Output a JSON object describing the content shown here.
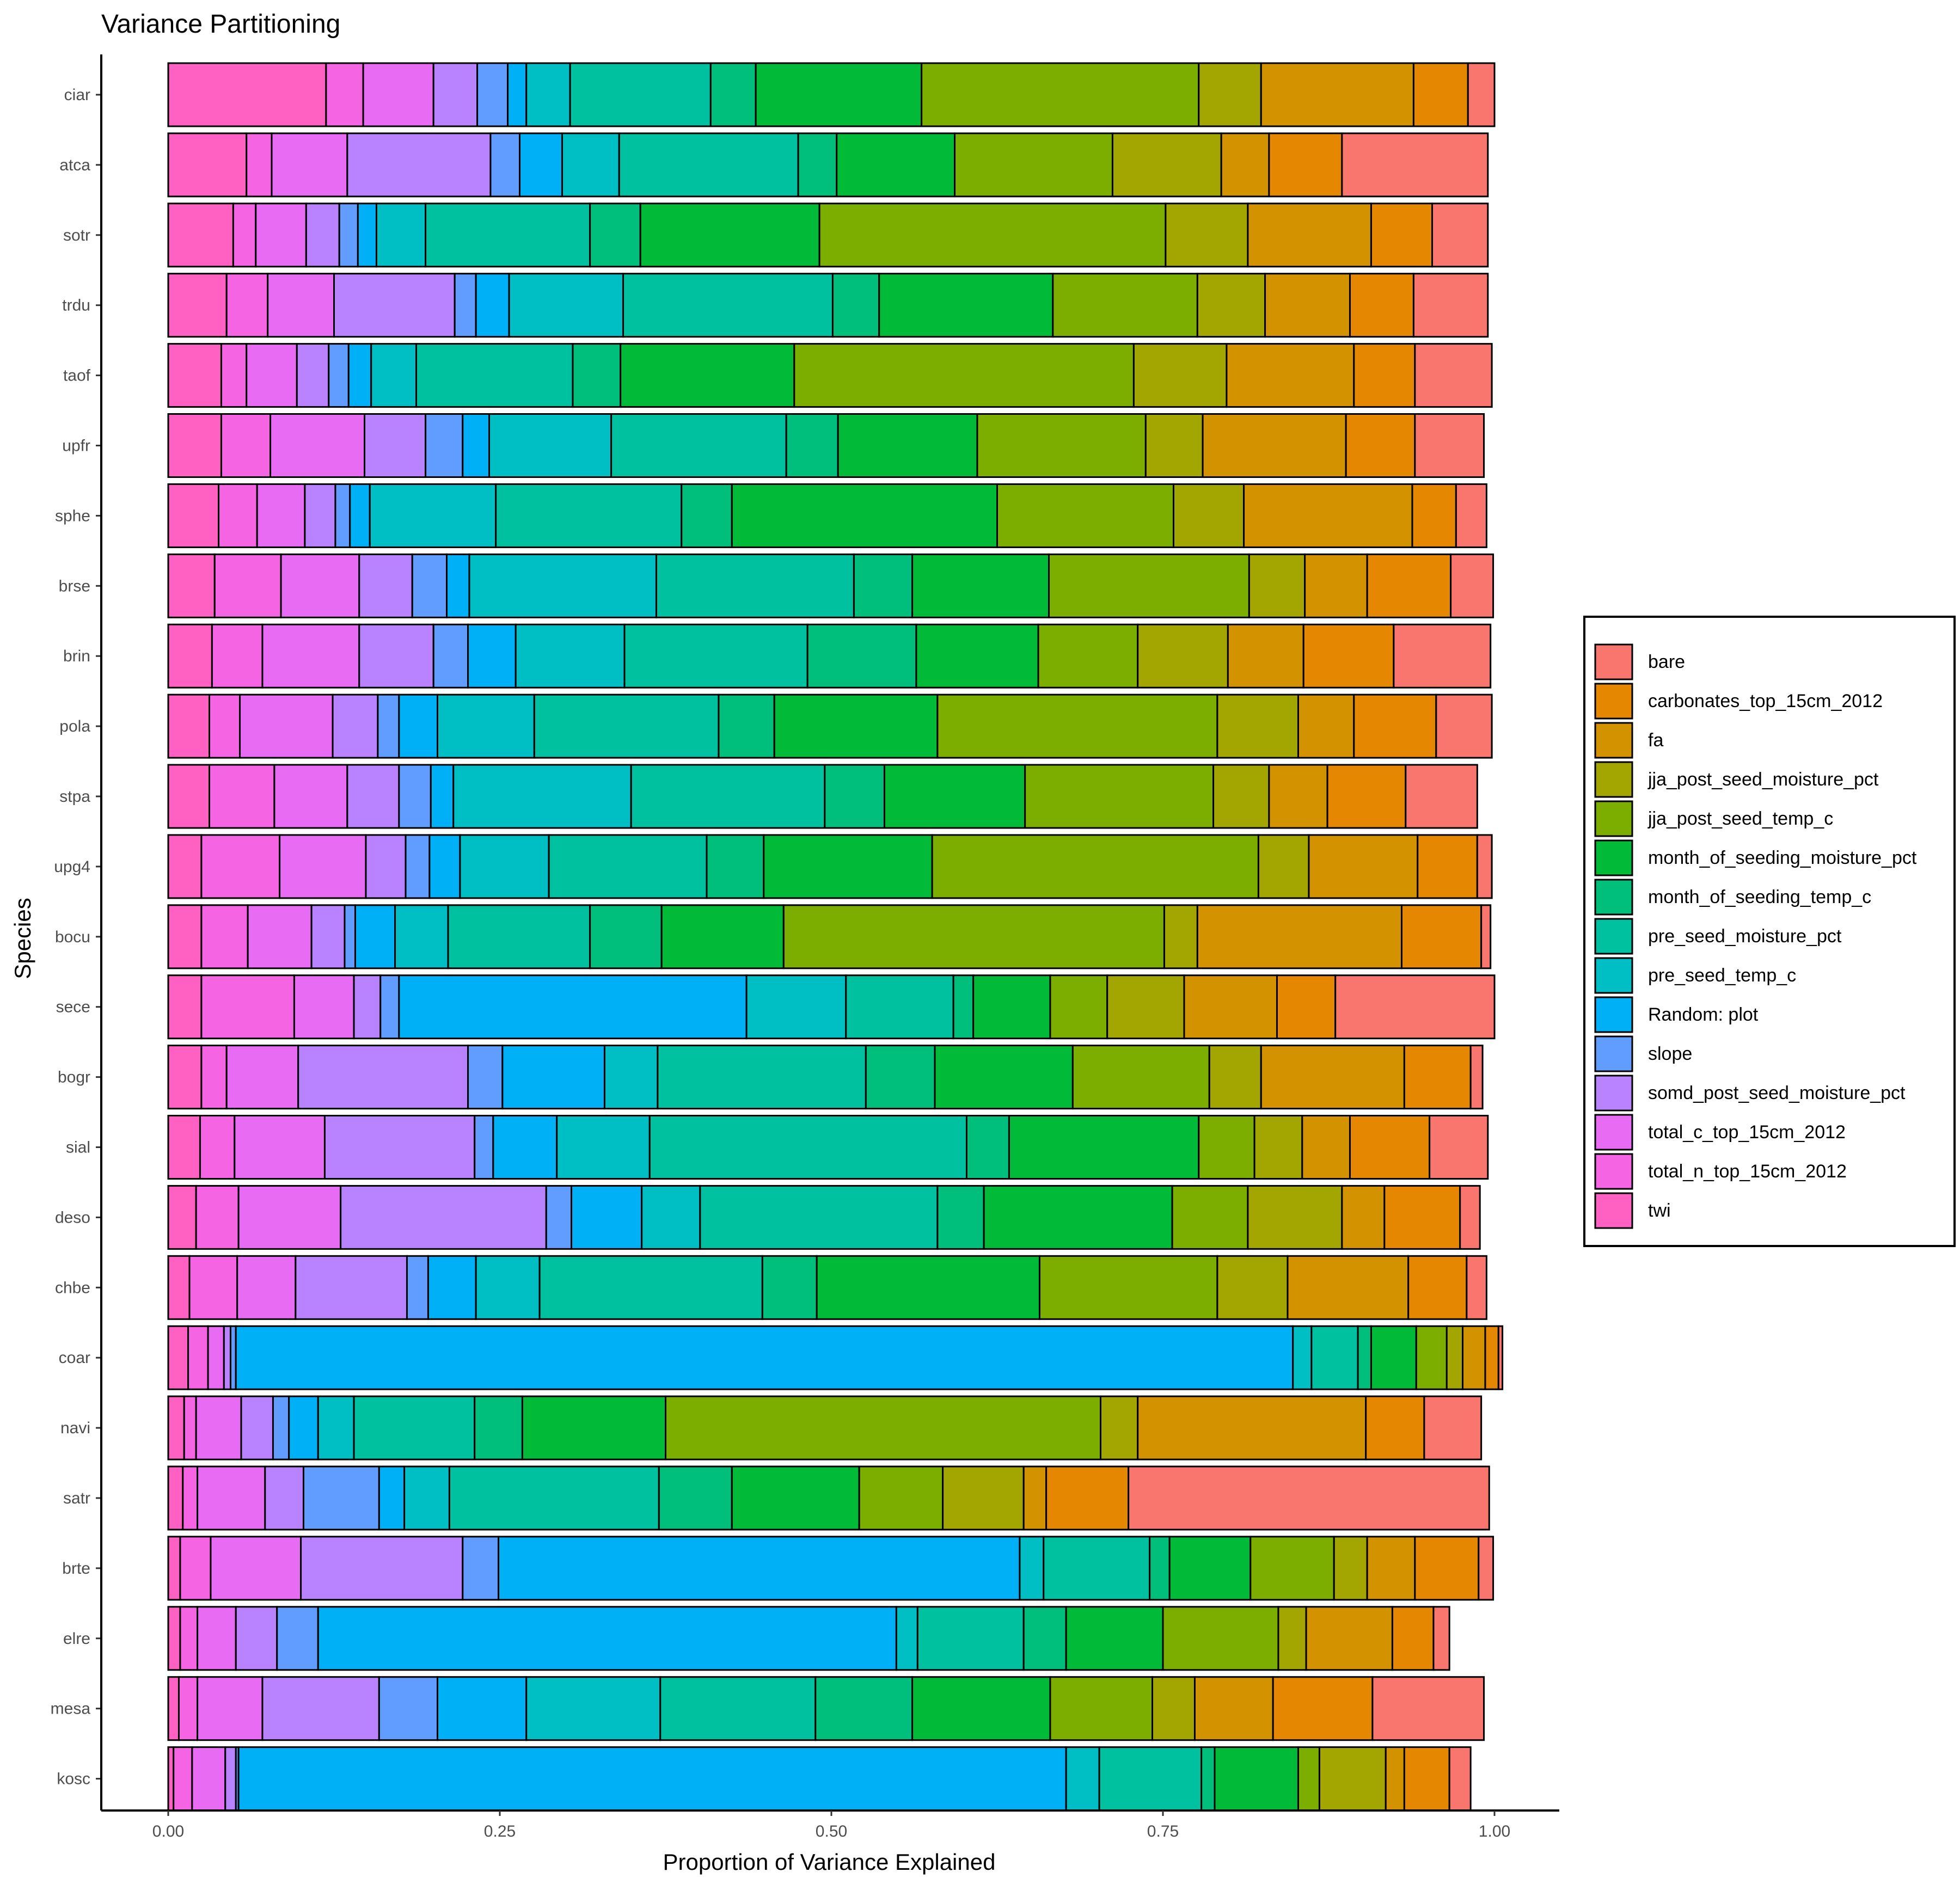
{
  "chart_data": {
    "type": "bar",
    "orientation": "horizontal",
    "stacked": true,
    "title": "Variance Partitioning",
    "xlabel": "Proportion of Variance Explained",
    "ylabel": "Species",
    "xlim": [
      0,
      1
    ],
    "xticks": [
      "0.00",
      "0.25",
      "0.50",
      "0.75",
      "1.00"
    ],
    "grid": false,
    "legend_position": "right",
    "categories": [
      "ciar",
      "atca",
      "sotr",
      "trdu",
      "taof",
      "upfr",
      "sphe",
      "brse",
      "brin",
      "pola",
      "stpa",
      "upg4",
      "bocu",
      "sece",
      "bogr",
      "sial",
      "deso",
      "chbe",
      "coar",
      "navi",
      "satr",
      "brte",
      "elre",
      "mesa",
      "kosc"
    ],
    "series": [
      {
        "name": "twi",
        "color": "#FF61C3",
        "values": [
          0.119,
          0.059,
          0.049,
          0.044,
          0.04,
          0.04,
          0.038,
          0.035,
          0.033,
          0.031,
          0.031,
          0.025,
          0.025,
          0.025,
          0.025,
          0.024,
          0.021,
          0.016,
          0.015,
          0.012,
          0.011,
          0.009,
          0.009,
          0.008,
          0.004
        ]
      },
      {
        "name": "total_n_top_15cm_2012",
        "color": "#F564E3",
        "values": [
          0.028,
          0.019,
          0.017,
          0.031,
          0.019,
          0.037,
          0.029,
          0.05,
          0.038,
          0.023,
          0.049,
          0.059,
          0.035,
          0.07,
          0.019,
          0.026,
          0.032,
          0.036,
          0.015,
          0.009,
          0.011,
          0.023,
          0.013,
          0.014,
          0.014
        ]
      },
      {
        "name": "total_c_top_15cm_2012",
        "color": "#E76BF3",
        "values": [
          0.053,
          0.057,
          0.038,
          0.05,
          0.038,
          0.071,
          0.036,
          0.059,
          0.073,
          0.07,
          0.055,
          0.065,
          0.048,
          0.045,
          0.054,
          0.068,
          0.077,
          0.044,
          0.012,
          0.034,
          0.051,
          0.068,
          0.029,
          0.049,
          0.025
        ]
      },
      {
        "name": "somd_post_seed_moisture_pct",
        "color": "#B983FF",
        "values": [
          0.033,
          0.108,
          0.025,
          0.091,
          0.024,
          0.046,
          0.023,
          0.04,
          0.056,
          0.034,
          0.039,
          0.03,
          0.025,
          0.02,
          0.128,
          0.113,
          0.155,
          0.084,
          0.005,
          0.024,
          0.029,
          0.122,
          0.031,
          0.088,
          0.008
        ]
      },
      {
        "name": "slope",
        "color": "#619CFF",
        "values": [
          0.023,
          0.022,
          0.014,
          0.016,
          0.015,
          0.028,
          0.011,
          0.026,
          0.026,
          0.016,
          0.024,
          0.018,
          0.008,
          0.014,
          0.026,
          0.014,
          0.019,
          0.016,
          0.004,
          0.012,
          0.057,
          0.027,
          0.031,
          0.044,
          0.002
        ]
      },
      {
        "name": "Random: plot",
        "color": "#00B0F6",
        "values": [
          0.014,
          0.032,
          0.014,
          0.025,
          0.017,
          0.02,
          0.015,
          0.017,
          0.036,
          0.029,
          0.017,
          0.023,
          0.03,
          0.262,
          0.077,
          0.048,
          0.053,
          0.036,
          0.797,
          0.022,
          0.019,
          0.393,
          0.436,
          0.067,
          0.624
        ]
      },
      {
        "name": "pre_seed_temp_c",
        "color": "#00BFC4",
        "values": [
          0.033,
          0.043,
          0.037,
          0.086,
          0.034,
          0.092,
          0.095,
          0.141,
          0.082,
          0.073,
          0.134,
          0.067,
          0.04,
          0.075,
          0.04,
          0.07,
          0.044,
          0.048,
          0.014,
          0.027,
          0.034,
          0.018,
          0.016,
          0.101,
          0.025
        ]
      },
      {
        "name": "pre_seed_moisture_pct",
        "color": "#00C19F",
        "values": [
          0.106,
          0.135,
          0.124,
          0.158,
          0.118,
          0.132,
          0.14,
          0.149,
          0.138,
          0.139,
          0.146,
          0.119,
          0.107,
          0.081,
          0.157,
          0.239,
          0.179,
          0.168,
          0.035,
          0.091,
          0.158,
          0.08,
          0.08,
          0.117,
          0.077
        ]
      },
      {
        "name": "month_of_seeding_temp_c",
        "color": "#00BF7D",
        "values": [
          0.034,
          0.029,
          0.038,
          0.035,
          0.036,
          0.039,
          0.038,
          0.044,
          0.082,
          0.042,
          0.045,
          0.043,
          0.054,
          0.015,
          0.052,
          0.032,
          0.035,
          0.041,
          0.01,
          0.036,
          0.055,
          0.015,
          0.032,
          0.073,
          0.01
        ]
      },
      {
        "name": "month_of_seeding_moisture_pct",
        "color": "#00BA38",
        "values": [
          0.125,
          0.089,
          0.135,
          0.131,
          0.131,
          0.105,
          0.2,
          0.103,
          0.092,
          0.123,
          0.106,
          0.127,
          0.092,
          0.058,
          0.104,
          0.143,
          0.142,
          0.168,
          0.034,
          0.108,
          0.096,
          0.061,
          0.073,
          0.104,
          0.063
        ]
      },
      {
        "name": "jja_post_seed_temp_c",
        "color": "#7CAE00",
        "values": [
          0.209,
          0.119,
          0.261,
          0.109,
          0.256,
          0.127,
          0.133,
          0.151,
          0.075,
          0.211,
          0.142,
          0.246,
          0.287,
          0.043,
          0.103,
          0.042,
          0.057,
          0.134,
          0.023,
          0.328,
          0.063,
          0.063,
          0.087,
          0.077,
          0.016
        ]
      },
      {
        "name": "jja_post_seed_moisture_pct",
        "color": "#A3A500",
        "values": [
          0.047,
          0.082,
          0.062,
          0.051,
          0.07,
          0.043,
          0.053,
          0.042,
          0.068,
          0.061,
          0.042,
          0.038,
          0.025,
          0.058,
          0.039,
          0.036,
          0.071,
          0.053,
          0.012,
          0.028,
          0.061,
          0.025,
          0.021,
          0.032,
          0.05
        ]
      },
      {
        "name": "fa",
        "color": "#D39200",
        "values": [
          0.115,
          0.036,
          0.093,
          0.064,
          0.096,
          0.108,
          0.127,
          0.047,
          0.057,
          0.042,
          0.044,
          0.082,
          0.154,
          0.07,
          0.108,
          0.036,
          0.032,
          0.091,
          0.017,
          0.172,
          0.017,
          0.036,
          0.065,
          0.059,
          0.014
        ]
      },
      {
        "name": "carbonates_top_15cm_2012",
        "color": "#E58700",
        "values": [
          0.041,
          0.055,
          0.046,
          0.048,
          0.046,
          0.052,
          0.033,
          0.063,
          0.068,
          0.062,
          0.059,
          0.045,
          0.06,
          0.044,
          0.05,
          0.06,
          0.057,
          0.044,
          0.01,
          0.044,
          0.062,
          0.048,
          0.031,
          0.075,
          0.034
        ]
      },
      {
        "name": "bare",
        "color": "#F8766D",
        "values": [
          0.02,
          0.11,
          0.042,
          0.056,
          0.058,
          0.052,
          0.023,
          0.032,
          0.073,
          0.042,
          0.054,
          0.011,
          0.007,
          0.12,
          0.009,
          0.044,
          0.015,
          0.015,
          0.003,
          0.043,
          0.272,
          0.011,
          0.012,
          0.084,
          0.016
        ]
      }
    ],
    "legend_order": [
      "bare",
      "carbonates_top_15cm_2012",
      "fa",
      "jja_post_seed_moisture_pct",
      "jja_post_seed_temp_c",
      "month_of_seeding_moisture_pct",
      "month_of_seeding_temp_c",
      "pre_seed_moisture_pct",
      "pre_seed_temp_c",
      "Random: plot",
      "slope",
      "somd_post_seed_moisture_pct",
      "total_c_top_15cm_2012",
      "total_n_top_15cm_2012",
      "twi"
    ]
  }
}
